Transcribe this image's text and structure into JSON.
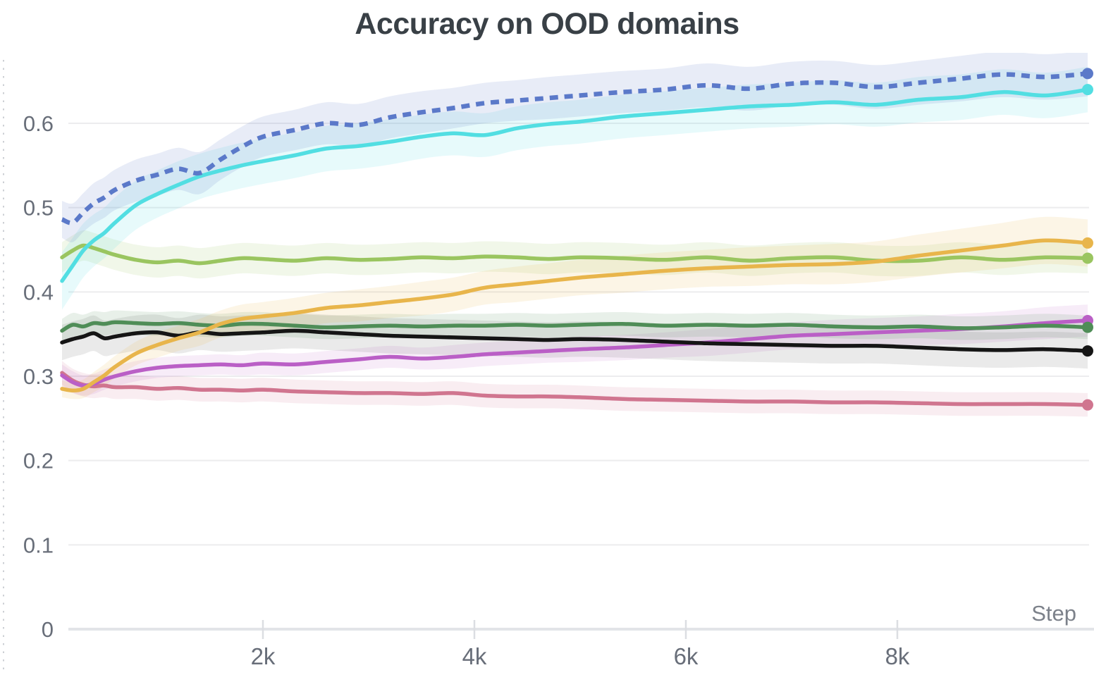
{
  "title": "Accuracy on OOD domains",
  "axes": {
    "x_label": "Step",
    "x_tick_labels": [
      "2k",
      "4k",
      "6k",
      "8k"
    ],
    "y_tick_labels": [
      "0",
      "0.1",
      "0.2",
      "0.3",
      "0.4",
      "0.5",
      "0.6"
    ]
  },
  "chart_data": {
    "type": "line",
    "title": "Accuracy on OOD domains",
    "xlabel": "Step",
    "ylabel": "",
    "xlim": [
      0,
      10000
    ],
    "ylim": [
      0,
      0.68
    ],
    "grid": true,
    "legend_position": "none",
    "x_ticks": [
      {
        "value": 2000,
        "label": "2k"
      },
      {
        "value": 4000,
        "label": "4k"
      },
      {
        "value": 6000,
        "label": "6k"
      },
      {
        "value": 8000,
        "label": "8k"
      }
    ],
    "y_ticks": [
      {
        "value": 0,
        "label": "0"
      },
      {
        "value": 0.1,
        "label": "0.1"
      },
      {
        "value": 0.2,
        "label": "0.2"
      },
      {
        "value": 0.3,
        "label": "0.3"
      },
      {
        "value": 0.4,
        "label": "0.4"
      },
      {
        "value": 0.5,
        "label": "0.5"
      },
      {
        "value": 0.6,
        "label": "0.6"
      }
    ],
    "x": [
      100,
      200,
      300,
      400,
      500,
      600,
      800,
      1000,
      1200,
      1400,
      1600,
      1800,
      2000,
      2300,
      2600,
      2900,
      3200,
      3500,
      3800,
      4100,
      4400,
      4700,
      5000,
      5400,
      5800,
      6200,
      6600,
      7000,
      7400,
      7800,
      8200,
      8600,
      9000,
      9400,
      9800
    ],
    "series": [
      {
        "name": "rose",
        "color": "#d0758f",
        "band_color": "rgba(208,117,143,0.13)",
        "line_style": "solid",
        "end_marker": true,
        "values": [
          0.304,
          0.295,
          0.29,
          0.288,
          0.289,
          0.287,
          0.287,
          0.285,
          0.286,
          0.284,
          0.284,
          0.283,
          0.284,
          0.282,
          0.281,
          0.28,
          0.28,
          0.279,
          0.28,
          0.277,
          0.276,
          0.276,
          0.275,
          0.273,
          0.272,
          0.271,
          0.27,
          0.27,
          0.269,
          0.269,
          0.268,
          0.267,
          0.267,
          0.267,
          0.266
        ],
        "band": 0.014
      },
      {
        "name": "magenta",
        "color": "#ba5fc6",
        "band_color": "rgba(186,95,198,0.12)",
        "line_style": "solid",
        "end_marker": true,
        "values": [
          0.301,
          0.293,
          0.289,
          0.291,
          0.296,
          0.3,
          0.306,
          0.31,
          0.312,
          0.313,
          0.314,
          0.313,
          0.315,
          0.314,
          0.317,
          0.32,
          0.323,
          0.321,
          0.323,
          0.326,
          0.328,
          0.33,
          0.332,
          0.334,
          0.337,
          0.34,
          0.344,
          0.348,
          0.35,
          0.352,
          0.354,
          0.356,
          0.359,
          0.363,
          0.366
        ],
        "band": [
          0.013,
          0.013,
          0.012,
          0.012,
          0.012,
          0.012,
          0.012,
          0.012,
          0.012,
          0.012,
          0.012,
          0.012,
          0.013,
          0.013,
          0.013,
          0.013,
          0.013,
          0.013,
          0.014,
          0.014,
          0.014,
          0.014,
          0.015,
          0.015,
          0.015,
          0.016,
          0.016,
          0.016,
          0.017,
          0.017,
          0.017,
          0.018,
          0.018,
          0.019,
          0.019
        ]
      },
      {
        "name": "black",
        "color": "#151515",
        "band_color": "rgba(90,90,90,0.13)",
        "line_style": "solid",
        "end_marker": true,
        "values": [
          0.34,
          0.344,
          0.347,
          0.351,
          0.345,
          0.347,
          0.351,
          0.352,
          0.348,
          0.352,
          0.35,
          0.351,
          0.352,
          0.354,
          0.352,
          0.35,
          0.348,
          0.347,
          0.346,
          0.345,
          0.344,
          0.343,
          0.344,
          0.343,
          0.341,
          0.339,
          0.338,
          0.337,
          0.336,
          0.336,
          0.334,
          0.332,
          0.331,
          0.332,
          0.33
        ],
        "band": 0.021
      },
      {
        "name": "dark-green",
        "color": "#4f8d57",
        "band_color": "rgba(79,141,87,0.13)",
        "line_style": "solid",
        "end_marker": true,
        "values": [
          0.354,
          0.361,
          0.359,
          0.363,
          0.362,
          0.364,
          0.363,
          0.362,
          0.363,
          0.361,
          0.36,
          0.362,
          0.362,
          0.36,
          0.358,
          0.359,
          0.36,
          0.359,
          0.36,
          0.36,
          0.361,
          0.36,
          0.361,
          0.362,
          0.36,
          0.361,
          0.36,
          0.361,
          0.359,
          0.358,
          0.359,
          0.357,
          0.358,
          0.36,
          0.358
        ],
        "band": 0.014
      },
      {
        "name": "yellow-green",
        "color": "#9ac560",
        "band_color": "rgba(154,197,96,0.14)",
        "line_style": "solid",
        "end_marker": true,
        "values": [
          0.441,
          0.449,
          0.455,
          0.452,
          0.448,
          0.444,
          0.438,
          0.435,
          0.437,
          0.434,
          0.437,
          0.44,
          0.439,
          0.437,
          0.44,
          0.438,
          0.439,
          0.441,
          0.44,
          0.442,
          0.441,
          0.439,
          0.441,
          0.44,
          0.438,
          0.441,
          0.437,
          0.44,
          0.441,
          0.437,
          0.437,
          0.441,
          0.438,
          0.441,
          0.44
        ],
        "band": 0.018
      },
      {
        "name": "gold",
        "color": "#e8b54b",
        "band_color": "rgba(232,181,75,0.14)",
        "line_style": "solid",
        "end_marker": true,
        "values": [
          0.285,
          0.283,
          0.285,
          0.293,
          0.301,
          0.311,
          0.327,
          0.337,
          0.345,
          0.352,
          0.362,
          0.368,
          0.371,
          0.375,
          0.381,
          0.384,
          0.388,
          0.392,
          0.397,
          0.405,
          0.409,
          0.413,
          0.417,
          0.421,
          0.425,
          0.428,
          0.43,
          0.432,
          0.433,
          0.436,
          0.443,
          0.449,
          0.455,
          0.461,
          0.458
        ],
        "band": [
          0.01,
          0.01,
          0.011,
          0.012,
          0.013,
          0.013,
          0.014,
          0.015,
          0.015,
          0.016,
          0.016,
          0.017,
          0.017,
          0.018,
          0.018,
          0.019,
          0.019,
          0.02,
          0.02,
          0.02,
          0.021,
          0.021,
          0.021,
          0.022,
          0.022,
          0.022,
          0.023,
          0.023,
          0.024,
          0.024,
          0.025,
          0.026,
          0.027,
          0.028,
          0.028
        ]
      },
      {
        "name": "cyan",
        "color": "#52dee2",
        "band_color": "rgba(82,222,226,0.14)",
        "line_style": "solid",
        "end_marker": true,
        "values": [
          0.413,
          0.431,
          0.449,
          0.461,
          0.47,
          0.482,
          0.503,
          0.516,
          0.527,
          0.537,
          0.544,
          0.55,
          0.555,
          0.562,
          0.57,
          0.573,
          0.578,
          0.584,
          0.588,
          0.586,
          0.594,
          0.599,
          0.602,
          0.608,
          0.612,
          0.616,
          0.62,
          0.622,
          0.625,
          0.622,
          0.628,
          0.631,
          0.637,
          0.633,
          0.64
        ],
        "band": [
          0.034,
          0.033,
          0.032,
          0.031,
          0.03,
          0.03,
          0.029,
          0.028,
          0.028,
          0.027,
          0.027,
          0.027,
          0.027,
          0.027,
          0.027,
          0.027,
          0.027,
          0.026,
          0.026,
          0.026,
          0.026,
          0.026,
          0.026,
          0.026,
          0.026,
          0.026,
          0.026,
          0.026,
          0.026,
          0.026,
          0.027,
          0.027,
          0.027,
          0.027,
          0.027
        ]
      },
      {
        "name": "dashed-blue",
        "color": "#5b79c9",
        "band_color": "rgba(91,121,201,0.14)",
        "line_style": "dashed",
        "end_marker": true,
        "values": [
          0.486,
          0.482,
          0.494,
          0.505,
          0.512,
          0.521,
          0.532,
          0.539,
          0.546,
          0.541,
          0.557,
          0.572,
          0.584,
          0.592,
          0.6,
          0.598,
          0.607,
          0.613,
          0.618,
          0.624,
          0.627,
          0.63,
          0.633,
          0.637,
          0.64,
          0.645,
          0.641,
          0.647,
          0.648,
          0.643,
          0.648,
          0.653,
          0.658,
          0.655,
          0.659
        ],
        "band": [
          0.022,
          0.023,
          0.023,
          0.024,
          0.024,
          0.024,
          0.025,
          0.025,
          0.025,
          0.025,
          0.024,
          0.024,
          0.024,
          0.024,
          0.025,
          0.025,
          0.025,
          0.025,
          0.024,
          0.024,
          0.024,
          0.025,
          0.025,
          0.025,
          0.025,
          0.026,
          0.026,
          0.026,
          0.026,
          0.026,
          0.026,
          0.027,
          0.027,
          0.027,
          0.027
        ]
      }
    ]
  },
  "style": {
    "background": "#ffffff",
    "grid_color": "#ececee",
    "axis_line_color": "#e2e4e8",
    "tick_mark_color": "#dcdee2",
    "tick_label_color": "#686e79",
    "title_color": "#394046",
    "xlabel_color": "#7c818a"
  }
}
